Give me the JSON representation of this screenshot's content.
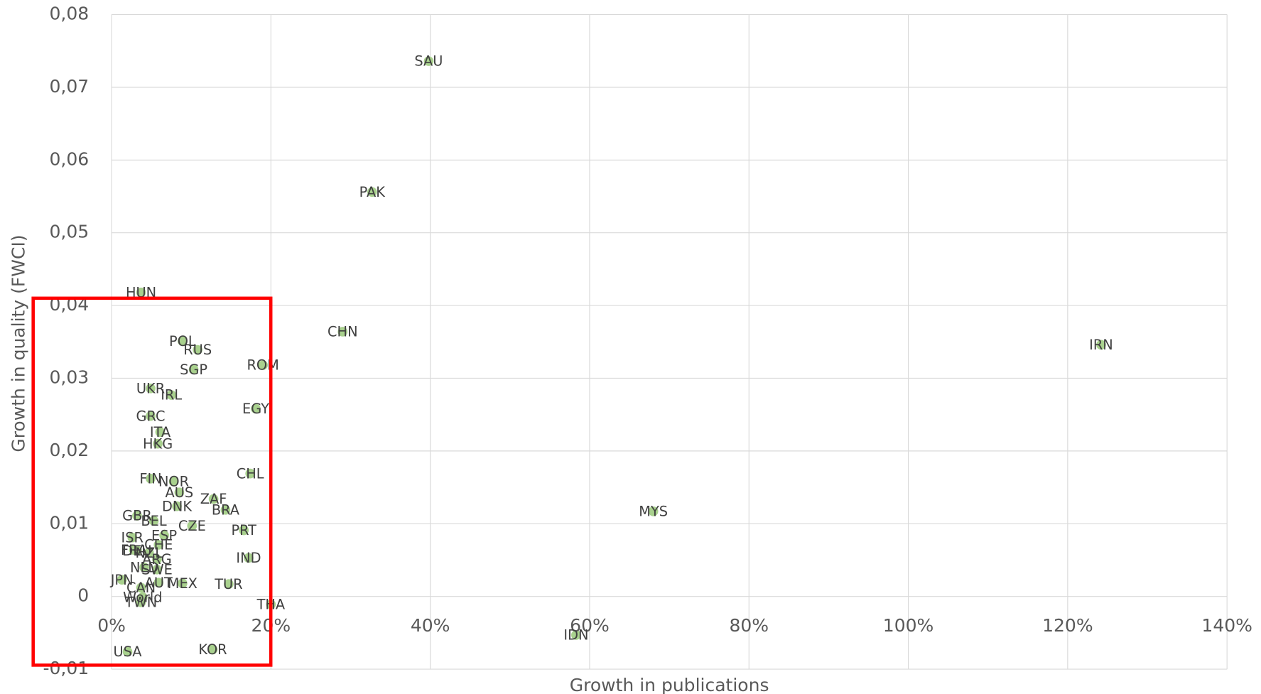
{
  "chart_data": {
    "type": "scatter",
    "x_label": "Growth in publications",
    "y_label": "Growth in quality (FWCI)",
    "color": "#a9d18e",
    "grid": true,
    "xlim": [
      0,
      140
    ],
    "xticks": [
      {
        "value": 0,
        "label": "0%"
      },
      {
        "value": 20,
        "label": "20%"
      },
      {
        "value": 40,
        "label": "40%"
      },
      {
        "value": 60,
        "label": "60%"
      },
      {
        "value": 80,
        "label": "80%"
      },
      {
        "value": 100,
        "label": "100%"
      },
      {
        "value": 120,
        "label": "120%"
      },
      {
        "value": 140,
        "label": "140%"
      }
    ],
    "ylim": [
      -0.01,
      0.08
    ],
    "yticks": [
      {
        "value": -0.01,
        "label": "-0,01"
      },
      0,
      {
        "value": 0.01,
        "label": "0,01"
      },
      {
        "value": 0.02,
        "label": "0,02"
      },
      {
        "value": 0.03,
        "label": "0,03"
      },
      {
        "value": 0.04,
        "label": "0,04"
      },
      {
        "value": 0.05,
        "label": "0,05"
      },
      {
        "value": 0.06,
        "label": "0,06"
      },
      {
        "value": 0.07,
        "label": "0,07"
      },
      {
        "value": 0.08,
        "label": "0,08"
      }
    ],
    "point_labels": [
      "SAU",
      "PAK",
      "CHN",
      "IRN",
      "MYS",
      "IDN",
      "HUN",
      "POL",
      "RUS",
      "SGP",
      "ROM",
      "UKR",
      "IRL",
      "EGY",
      "GRC",
      "ITA",
      "HKG",
      "CHL",
      "FIN",
      "NOR",
      "AUS",
      "ZAF",
      "DNK",
      "BRA",
      "GBR",
      "BEL",
      "CZE",
      "PRT",
      "ISR",
      "ESP",
      "CHE",
      "FRA",
      "DEU",
      "NZL",
      "IND",
      "ARG",
      "NLD",
      "SWE",
      "JPN",
      "AUT",
      "MEX",
      "TUR",
      "CAN",
      "World",
      "TWN",
      "THA",
      "USA",
      "KOR"
    ],
    "x": [
      39.8,
      32.7,
      29.0,
      124.2,
      68.0,
      58.3,
      3.7,
      8.9,
      10.8,
      10.3,
      19.0,
      4.9,
      7.5,
      18.1,
      4.9,
      6.1,
      5.8,
      17.4,
      4.9,
      7.8,
      8.5,
      12.8,
      8.2,
      14.3,
      3.2,
      5.3,
      10.1,
      16.6,
      2.6,
      6.6,
      5.9,
      2.8,
      3.2,
      4.7,
      17.2,
      5.7,
      4.1,
      5.7,
      1.3,
      5.9,
      8.9,
      14.7,
      3.7,
      3.9,
      3.7,
      20.0,
      2.0,
      12.7
    ],
    "values": [
      0.0736,
      0.0556,
      0.0364,
      0.0346,
      0.0117,
      -0.0053,
      0.0418,
      0.0351,
      0.0339,
      0.0312,
      0.0318,
      0.0286,
      0.0277,
      0.0258,
      0.0248,
      0.0226,
      0.021,
      0.0169,
      0.0162,
      0.0158,
      0.0143,
      0.0134,
      0.0124,
      0.0119,
      0.0111,
      0.0104,
      0.0097,
      0.0091,
      0.0081,
      0.0084,
      0.0071,
      0.0064,
      0.0063,
      0.006,
      0.0053,
      0.0051,
      0.004,
      0.0037,
      0.0023,
      0.0019,
      0.0018,
      0.0017,
      0.0012,
      -0.0001,
      -0.0008,
      -0.0011,
      -0.0076,
      -0.0073
    ]
  }
}
